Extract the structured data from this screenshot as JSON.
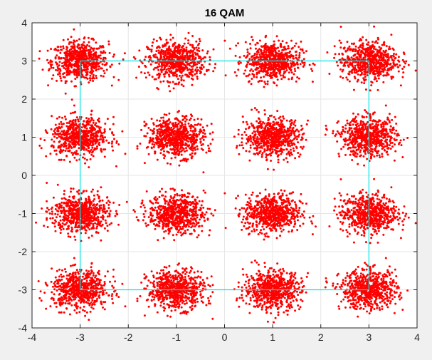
{
  "chart_data": {
    "type": "scatter",
    "title": "16 QAM",
    "xlabel": "",
    "ylabel": "",
    "xlim": [
      -4,
      4
    ],
    "ylim": [
      -4,
      4
    ],
    "x_ticks": [
      -4,
      -3,
      -2,
      -1,
      0,
      1,
      2,
      3,
      4
    ],
    "y_ticks": [
      -4,
      -3,
      -2,
      -1,
      0,
      1,
      2,
      3,
      4
    ],
    "x_tick_labels": [
      "-4",
      "-3",
      "-2",
      "-1",
      "0",
      "1",
      "2",
      "3",
      "4"
    ],
    "y_tick_labels": [
      "-4",
      "-3",
      "-2",
      "-1",
      "0",
      "1",
      "2",
      "3",
      "4"
    ],
    "grid": true,
    "series": [
      {
        "type": "scatter",
        "color": "#ff0000",
        "constellation_points": [
          [
            -3,
            3
          ],
          [
            -1,
            3
          ],
          [
            1,
            3
          ],
          [
            3,
            3
          ],
          [
            -3,
            1
          ],
          [
            -1,
            1
          ],
          [
            1,
            1
          ],
          [
            3,
            1
          ],
          [
            -3,
            -1
          ],
          [
            -1,
            -1
          ],
          [
            1,
            -1
          ],
          [
            3,
            -1
          ],
          [
            -3,
            -3
          ],
          [
            -1,
            -3
          ],
          [
            1,
            -3
          ],
          [
            3,
            -3
          ]
        ],
        "noise_std": 0.28
      },
      {
        "type": "line",
        "color": "#00e5e5",
        "x": [
          -3,
          3,
          3,
          -3,
          -3
        ],
        "y": [
          3,
          3,
          -3,
          -3,
          3
        ]
      }
    ],
    "colors": {
      "figure_background": "#f0f0f0",
      "axes_background": "#ffffff",
      "grid": "#e6e6e6",
      "axis": "#262626"
    }
  }
}
